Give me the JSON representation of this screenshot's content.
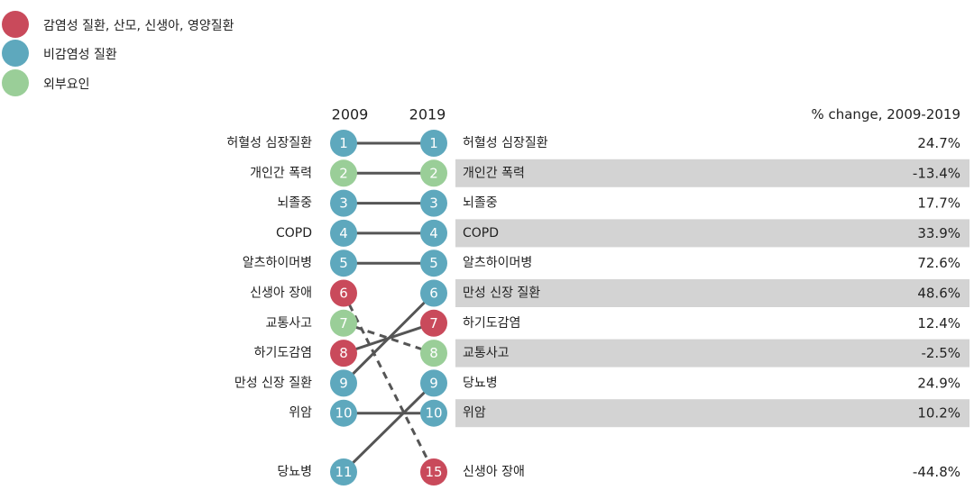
{
  "legend": [
    {
      "label": "감염성 질환, 산모, 신생아, 영양질환",
      "color": "#C94A5B"
    },
    {
      "label": "비감염성 질환",
      "color": "#5EA8BD"
    },
    {
      "label": "외부요인",
      "color": "#9ACE98"
    }
  ],
  "chart_data": {
    "type": "slope",
    "years": [
      "2009",
      "2019"
    ],
    "change_header": "% change, 2009-2019",
    "category_colors": {
      "infectious": "#C94A5B",
      "noncommunicable": "#5EA8BD",
      "external": "#9ACE98"
    },
    "ranks_2009": [
      {
        "rank": "1",
        "name": "허혈성 심장질환",
        "category": "noncommunicable"
      },
      {
        "rank": "2",
        "name": "개인간 폭력",
        "category": "external"
      },
      {
        "rank": "3",
        "name": "뇌졸중",
        "category": "noncommunicable"
      },
      {
        "rank": "4",
        "name": "COPD",
        "category": "noncommunicable"
      },
      {
        "rank": "5",
        "name": "알츠하이머병",
        "category": "noncommunicable"
      },
      {
        "rank": "6",
        "name": "신생아 장애",
        "category": "infectious"
      },
      {
        "rank": "7",
        "name": "교통사고",
        "category": "external"
      },
      {
        "rank": "8",
        "name": "하기도감염",
        "category": "infectious"
      },
      {
        "rank": "9",
        "name": "만성 신장 질환",
        "category": "noncommunicable"
      },
      {
        "rank": "10",
        "name": "위암",
        "category": "noncommunicable"
      },
      {
        "rank": "11",
        "name": "당뇨병",
        "category": "noncommunicable"
      }
    ],
    "ranks_2019": [
      {
        "rank": "1",
        "name": "허혈성 심장질환",
        "category": "noncommunicable",
        "change": "24.7%"
      },
      {
        "rank": "2",
        "name": "개인간 폭력",
        "category": "external",
        "change": "-13.4%"
      },
      {
        "rank": "3",
        "name": "뇌졸중",
        "category": "noncommunicable",
        "change": "17.7%"
      },
      {
        "rank": "4",
        "name": "COPD",
        "category": "noncommunicable",
        "change": "33.9%"
      },
      {
        "rank": "5",
        "name": "알츠하이머병",
        "category": "noncommunicable",
        "change": "72.6%"
      },
      {
        "rank": "6",
        "name": "만성 신장 질환",
        "category": "noncommunicable",
        "change": "48.6%"
      },
      {
        "rank": "7",
        "name": "하기도감염",
        "category": "infectious",
        "change": "12.4%"
      },
      {
        "rank": "8",
        "name": "교통사고",
        "category": "external",
        "change": "-2.5%"
      },
      {
        "rank": "9",
        "name": "당뇨병",
        "category": "noncommunicable",
        "change": "24.9%"
      },
      {
        "rank": "10",
        "name": "위암",
        "category": "noncommunicable",
        "change": "10.2%"
      },
      {
        "rank": "15",
        "name": "신생아 장애",
        "category": "infectious",
        "change": "-44.8%"
      }
    ],
    "links": [
      {
        "from": "1",
        "to": "1",
        "style": "solid"
      },
      {
        "from": "2",
        "to": "2",
        "style": "solid"
      },
      {
        "from": "3",
        "to": "3",
        "style": "solid"
      },
      {
        "from": "4",
        "to": "4",
        "style": "solid"
      },
      {
        "from": "5",
        "to": "5",
        "style": "solid"
      },
      {
        "from": "6",
        "to": "15",
        "style": "dashed"
      },
      {
        "from": "7",
        "to": "8",
        "style": "dashed"
      },
      {
        "from": "8",
        "to": "7",
        "style": "solid"
      },
      {
        "from": "9",
        "to": "6",
        "style": "solid"
      },
      {
        "from": "10",
        "to": "10",
        "style": "solid"
      },
      {
        "from": "11",
        "to": "9",
        "style": "solid"
      }
    ]
  }
}
